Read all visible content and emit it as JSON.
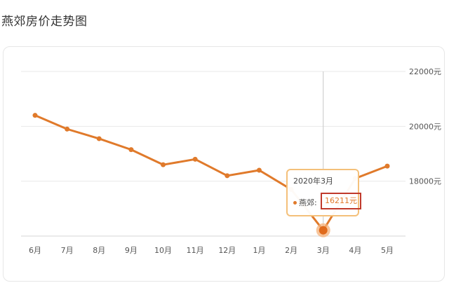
{
  "page": {
    "title": "燕郊房价走势图"
  },
  "chart_data": {
    "type": "line",
    "title": "燕郊房价走势图",
    "categories": [
      "6月",
      "7月",
      "8月",
      "9月",
      "10月",
      "11月",
      "12月",
      "1月",
      "2月",
      "3月",
      "4月",
      "5月"
    ],
    "series": [
      {
        "name": "燕郊",
        "values": [
          20400,
          19900,
          19550,
          19150,
          18600,
          18800,
          18200,
          18400,
          17700,
          16211,
          18100,
          18550
        ]
      }
    ],
    "ylim": [
      16000,
      22000
    ],
    "y_ticks": [
      "18000元",
      "20000元",
      "22000元"
    ],
    "y_tick_values": [
      18000,
      20000,
      22000
    ],
    "y_axis_position": "right",
    "grid": true,
    "colors": {
      "series": "#e07a2b",
      "highlight_border": "#c0392b",
      "tooltip_border": "#f4c07a"
    },
    "tooltip": {
      "title": "2020年3月",
      "series_label": "燕郊:",
      "value": "16211元",
      "category": "3月"
    }
  }
}
